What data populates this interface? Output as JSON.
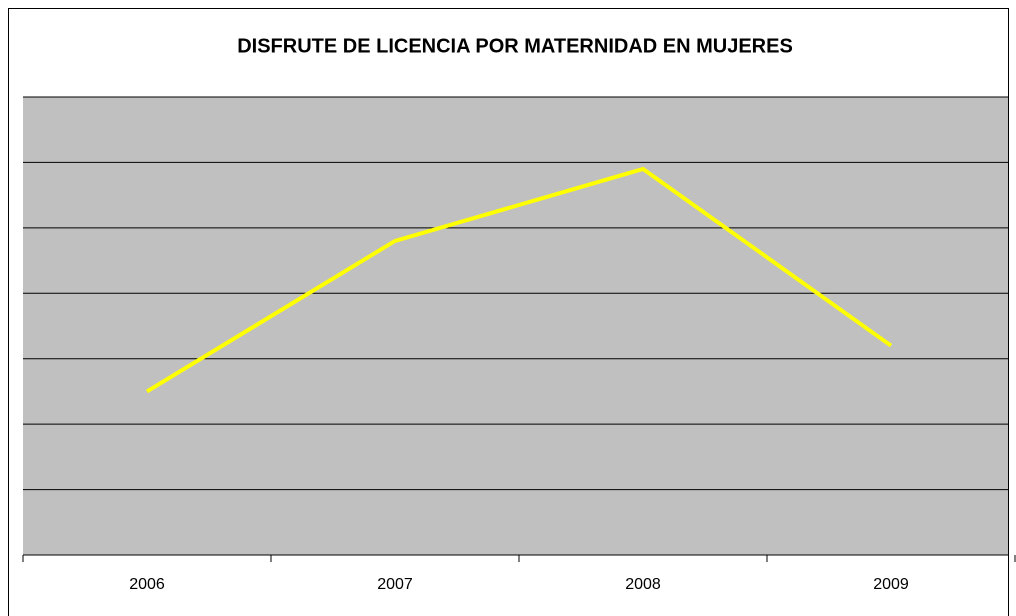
{
  "chart_data": {
    "type": "line",
    "title": "DISFRUTE DE LICENCIA POR MATERNIDAD EN MUJERES",
    "categories": [
      "2006",
      "2007",
      "2008",
      "2009"
    ],
    "values": [
      2.5,
      4.8,
      5.9,
      3.2
    ],
    "color": "#ffff00",
    "ylim": [
      0,
      7
    ],
    "yticks": [
      0,
      1,
      2,
      3,
      4,
      5,
      6,
      7
    ],
    "grid": true
  }
}
